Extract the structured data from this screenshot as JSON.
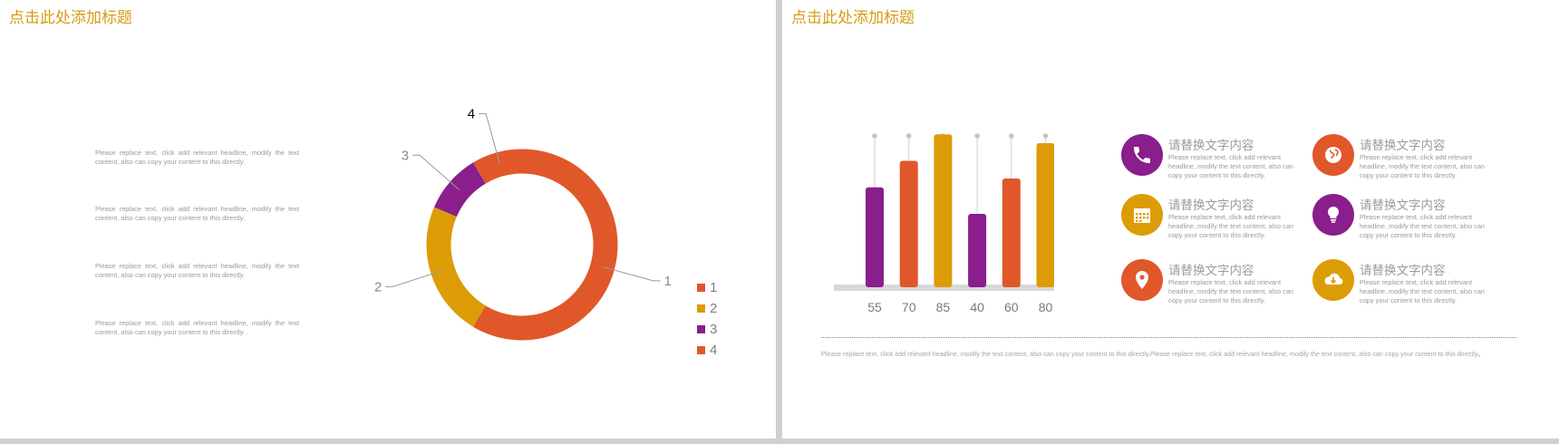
{
  "slide1": {
    "title": "点击此处添加标题",
    "paragraphs": [
      "Please replace text, click add relevant headline, modify the text content, also can copy your content to this directly.",
      "Please replace text, click add relevant headline, modify the text content, also can copy your content to this directly.",
      "Please replace text, click add relevant headline, modify the text content, also can copy your content to this directly.",
      "Please replace text, click add relevant headline, modify the text content, also can copy your content to this directly."
    ]
  },
  "slide2": {
    "title": "点击此处添加标题",
    "features": [
      {
        "title": "请替换文字内容",
        "desc": "Please replace text, click add relevant headline, modify the text content, also can copy your content to this directly.",
        "icon": "phone-icon",
        "color": "#8a1e8c"
      },
      {
        "title": "请替换文字内容",
        "desc": "Please replace text, click add relevant headline, modify the text content, also can copy your content to this directly.",
        "icon": "globe-icon",
        "color": "#e0572a"
      },
      {
        "title": "请替换文字内容",
        "desc": "Please replace text, click add relevant headline, modify the text content, also can copy your content to this directly.",
        "icon": "calendar-icon",
        "color": "#dc9c06"
      },
      {
        "title": "请替换文字内容",
        "desc": "Please replace text, click add relevant headline, modify the text content, also can copy your content to this directly.",
        "icon": "lightbulb-icon",
        "color": "#8a1e8c"
      },
      {
        "title": "请替换文字内容",
        "desc": "Please replace text, click add relevant headline, modify the text content, also can copy your content to this directly.",
        "icon": "location-pin-icon",
        "color": "#e0572a"
      },
      {
        "title": "请替换文字内容",
        "desc": "Please replace text, click add relevant headline, modify the text content, also can copy your content to this directly.",
        "icon": "cloud-download-icon",
        "color": "#dc9c06"
      }
    ],
    "footnote": "Please replace text, click add relevant headline, modify the text content, also can copy your content to this directly.Please replace text, click add relevant headline, modify the text content, also can copy your content to this directly。"
  },
  "chart_data": [
    {
      "type": "pie",
      "donut": true,
      "categories": [
        "1",
        "2",
        "3",
        "4"
      ],
      "values": [
        8.2,
        3.2,
        1.4,
        1.2
      ],
      "colors": [
        "#e0572a",
        "#dc9c06",
        "#8a1e8c",
        "#e0572a"
      ],
      "slice_labels": [
        "1",
        "2",
        "3",
        "4"
      ],
      "legend": [
        "1",
        "2",
        "3",
        "4"
      ],
      "legend_position": "bottom-right"
    },
    {
      "type": "bar",
      "categories": [
        "55",
        "70",
        "85",
        "40",
        "60",
        "80"
      ],
      "values": [
        55,
        70,
        85,
        40,
        60,
        80
      ],
      "colors": [
        "#8a1e8c",
        "#e0572a",
        "#dc9c06",
        "#8a1e8c",
        "#e0572a",
        "#dc9c06"
      ],
      "ylim": [
        0,
        100
      ]
    }
  ]
}
